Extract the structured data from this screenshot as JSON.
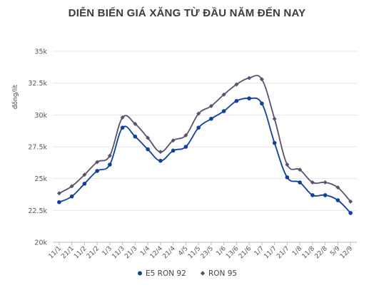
{
  "chart_data": {
    "type": "line",
    "title": "DIỄN BIẾN GIÁ XĂNG TỪ ĐẦU NĂM ĐẾN NAY",
    "ylabel": "đồng/lít",
    "xlabel": "",
    "ylim": [
      20000,
      35000
    ],
    "yticks": [
      20000,
      22500,
      25000,
      27500,
      30000,
      32500,
      35000
    ],
    "ytick_labels": [
      "20k",
      "22.5k",
      "25k",
      "27.5k",
      "30k",
      "32.5k",
      "35k"
    ],
    "grid": true,
    "legend_position": "bottom",
    "categories": [
      "11/1",
      "21/1",
      "11/2",
      "21/2",
      "1/3",
      "11/3",
      "21/3",
      "1/4",
      "12/4",
      "21/4",
      "4/5",
      "11/5",
      "23/5",
      "1/6",
      "13/6",
      "21/6",
      "1/7",
      "11/7",
      "21/7",
      "1/8",
      "11/8",
      "22/8",
      "5/9",
      "12/9"
    ],
    "series": [
      {
        "name": "E5 RON 92",
        "color": "#0f3fa0",
        "marker": "circle",
        "values": [
          23150,
          23600,
          24600,
          25600,
          26100,
          29000,
          28300,
          27300,
          26400,
          27200,
          27500,
          29000,
          29700,
          30300,
          31100,
          31300,
          30900,
          27800,
          25100,
          24700,
          23700,
          23700,
          23300,
          22300
        ]
      },
      {
        "name": "RON 95",
        "color": "#5a5170",
        "marker": "diamond",
        "values": [
          23850,
          24400,
          25300,
          26300,
          26800,
          29800,
          29300,
          28200,
          27100,
          28000,
          28400,
          30100,
          30700,
          31600,
          32400,
          32900,
          32800,
          29700,
          26100,
          25700,
          24700,
          24700,
          24300,
          23200
        ]
      }
    ]
  }
}
